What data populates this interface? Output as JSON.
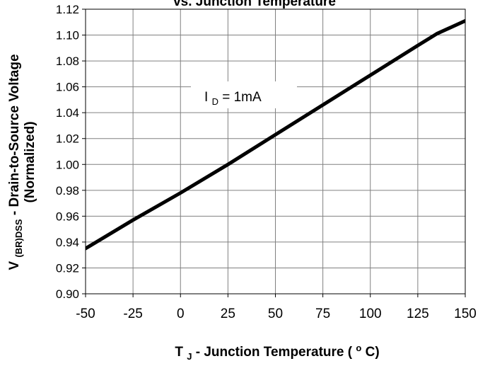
{
  "chart_data": {
    "type": "line",
    "title": "vs. Junction Temperature",
    "x": [
      -50,
      -25,
      0,
      25,
      50,
      75,
      100,
      125,
      135,
      150
    ],
    "series": [
      {
        "values": [
          0.935,
          0.957,
          0.978,
          1.0,
          1.023,
          1.046,
          1.069,
          1.092,
          1.101,
          1.111
        ]
      }
    ],
    "xlim": [
      -50,
      150
    ],
    "ylim": [
      0.9,
      1.12
    ],
    "xticks": [
      "-50",
      "-25",
      "0",
      "25",
      "50",
      "75",
      "100",
      "125",
      "150"
    ],
    "yticks": [
      "0.90",
      "0.92",
      "0.94",
      "0.96",
      "0.98",
      "1.00",
      "1.02",
      "1.04",
      "1.06",
      "1.08",
      "1.10",
      "1.12"
    ],
    "xlabel": {
      "main": "T",
      "sub": "J",
      "tail_a": " - Junction Temperature (",
      "sup": "o",
      "tail_b": "C)"
    },
    "ylabel": {
      "main": "V",
      "sub": "(BR)DSS",
      "tail": " - Drain-to-Source Voltage"
    },
    "ylabel2": "(Normalized)",
    "annotation": {
      "main": "I",
      "sub": "D",
      "tail": " = 1mA"
    },
    "grid": true
  }
}
